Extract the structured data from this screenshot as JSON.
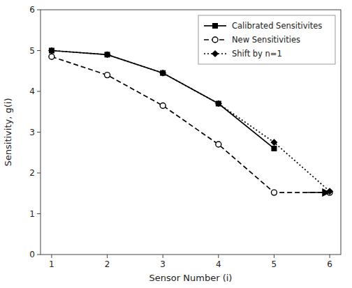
{
  "chart_data": {
    "type": "line",
    "xlabel": "Sensor Number (i)",
    "ylabel": "Sensitivity, g(i)",
    "series": [
      {
        "name": "Calibrated Sensitivites",
        "color": "#000000",
        "marker": "square",
        "line_style": "solid",
        "x": [
          1,
          2,
          3,
          4,
          5
        ],
        "values": [
          5.0,
          4.9,
          4.45,
          3.7,
          2.6
        ]
      },
      {
        "name": "New Sensitivities",
        "color": "#000000",
        "marker": "circle",
        "line_style": "dashed",
        "x": [
          1,
          2,
          3,
          4,
          5,
          6
        ],
        "values": [
          4.85,
          4.4,
          3.65,
          2.7,
          1.52,
          1.52
        ]
      },
      {
        "name": "Shift by n=1",
        "color": "#000000",
        "marker": "diamond",
        "line_style": "dotted",
        "x": [
          1,
          2,
          3,
          4,
          5,
          6
        ],
        "values": [
          5.0,
          4.9,
          4.45,
          3.7,
          2.75,
          1.55
        ]
      }
    ],
    "annotations": [
      {
        "type": "arrow",
        "x": 5.6,
        "y": 1.52,
        "x_end": 6.0,
        "y_end": 1.52
      }
    ],
    "xlim": [
      0.8,
      6.2
    ],
    "ylim": [
      0,
      6
    ],
    "xticks": [
      1,
      2,
      3,
      4,
      5,
      6
    ],
    "yticks": [
      0,
      1,
      2,
      3,
      4,
      5,
      6
    ],
    "grid": false,
    "legend": "upper right"
  }
}
